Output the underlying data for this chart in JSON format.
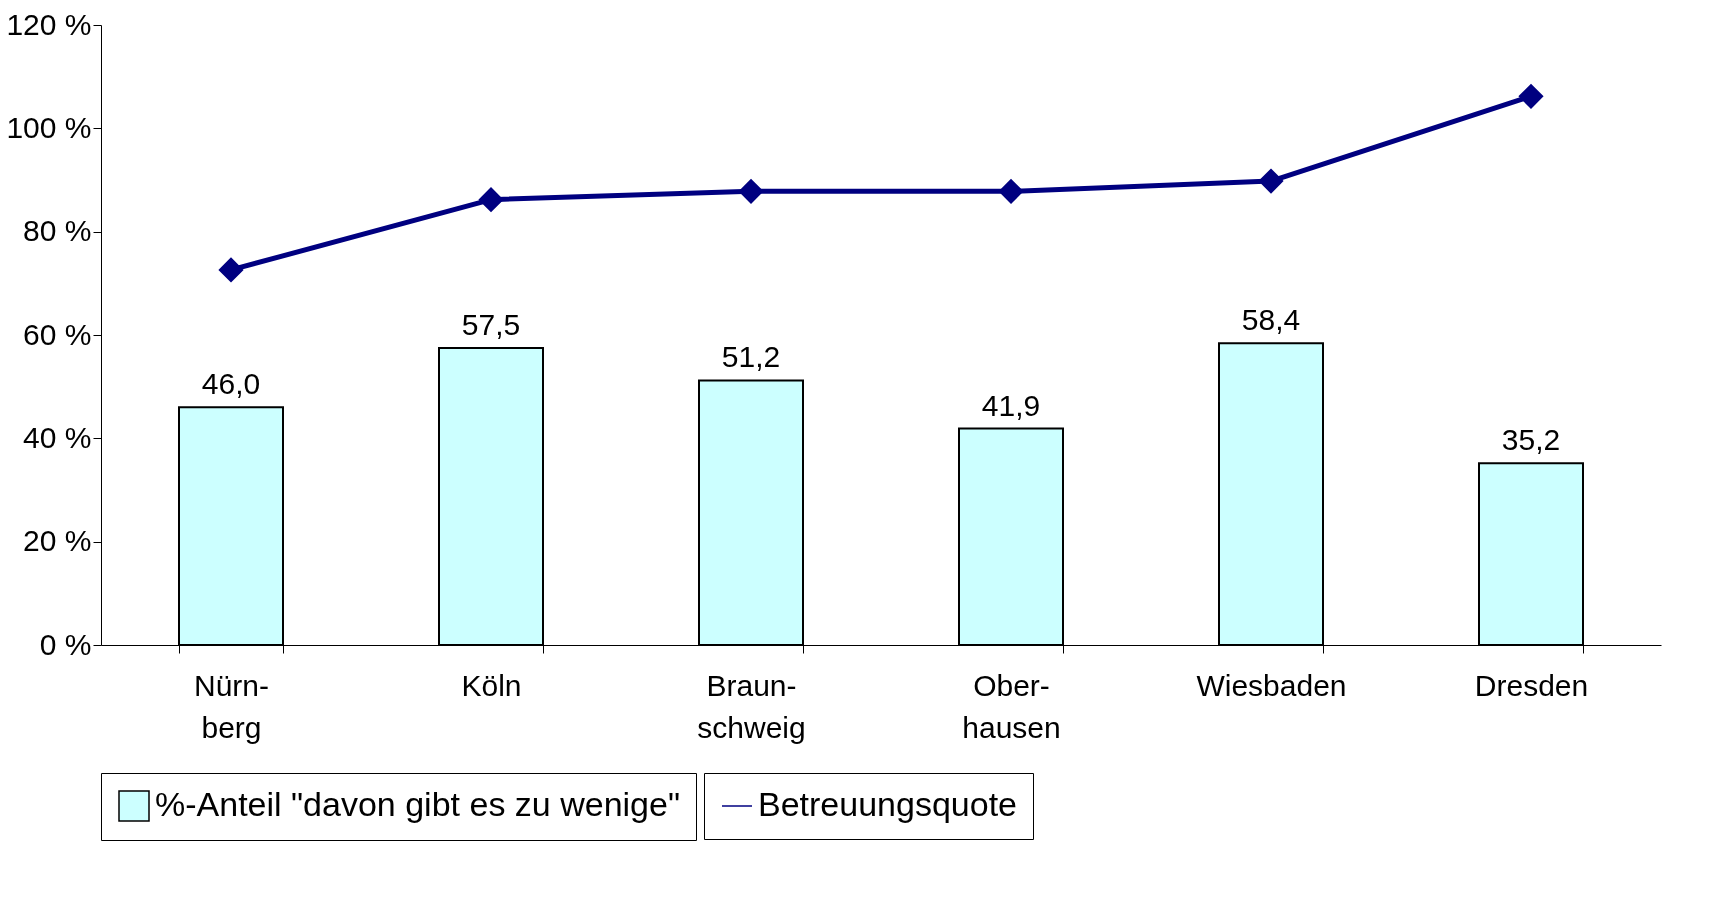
{
  "chart_data": {
    "type": "bar",
    "categories": [
      "Nürn-\nberg",
      "Köln",
      "Braun-\nschweig",
      "Ober-\nhausen",
      "Wiesbaden",
      "Dresden"
    ],
    "series": [
      {
        "name": "%-Anteil \"davon gibt es zu wenige\"",
        "color": "#ccffff",
        "values": [
          46.0,
          57.5,
          51.2,
          41.9,
          58.4,
          35.2
        ],
        "value_labels": [
          "46,0",
          "57,5",
          "51,2",
          "41,9",
          "58,4",
          "35,2"
        ]
      },
      {
        "name": "Betreuungsquote",
        "type": "line",
        "color": "#000080",
        "marker": "diamond",
        "values": [
          72.6,
          86.2,
          87.8,
          87.8,
          89.8,
          106.2
        ]
      }
    ],
    "ylim": [
      0,
      120
    ],
    "yticks": [
      {
        "value": 0,
        "label": "0 %"
      },
      {
        "value": 20,
        "label": "20 %"
      },
      {
        "value": 40,
        "label": "40 %"
      },
      {
        "value": 60,
        "label": "60 %"
      },
      {
        "value": 80,
        "label": "80 %"
      },
      {
        "value": 100,
        "label": "100 %"
      },
      {
        "value": 120,
        "label": "120 %"
      }
    ],
    "grid": false,
    "legend": "bottom"
  }
}
